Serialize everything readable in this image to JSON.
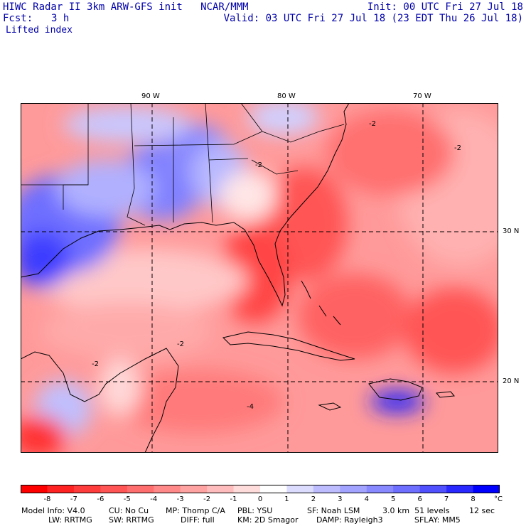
{
  "header": {
    "title_left": "HIWC Radar II 3km ARW-GFS init   NCAR/MMM",
    "init": "Init: 00 UTC Fri 27 Jul 18",
    "fcst_label": "Fcst:",
    "fcst_value": "3 h",
    "valid": "Valid: 03 UTC Fri 27 Jul 18 (23 EDT Thu 26 Jul 18)",
    "field": "Lifted index"
  },
  "map": {
    "lon_labels": [
      "90 W",
      "80 W",
      "70 W"
    ],
    "lat_labels": [
      "30 N",
      "20 N"
    ],
    "contour_labels": [
      "-2",
      "-2",
      "-2",
      "-2",
      "-2",
      "-4"
    ]
  },
  "colorbar": {
    "labels": [
      "-8",
      "-7",
      "-6",
      "-5",
      "-4",
      "-3",
      "-2",
      "-1",
      "0",
      "1",
      "2",
      "3",
      "4",
      "5",
      "6",
      "7",
      "8"
    ],
    "unit": "°C",
    "colors": [
      "#ff0000",
      "#ff2222",
      "#ff3c3c",
      "#ff5555",
      "#ff6e6e",
      "#ff8888",
      "#ffa2a2",
      "#ffbcbc",
      "#ffdcdc",
      "#ffffff",
      "#dcdcff",
      "#bcbcff",
      "#a2a2ff",
      "#8888ff",
      "#6e6eff",
      "#5050ff",
      "#2828ff",
      "#0000ff"
    ]
  },
  "footer": {
    "line1": [
      "Model Info: V4.0",
      "CU: No Cu",
      "MP: Thomp C/A",
      "PBL: YSU",
      "SF: Noah LSM",
      "3.0 km  51 levels",
      "12 sec"
    ],
    "line2": [
      "LW: RRTMG",
      "SW: RRTMG",
      "DIFF: full",
      "KM: 2D Smagor",
      "DAMP: Rayleigh3",
      "SFLAY: MM5"
    ]
  }
}
